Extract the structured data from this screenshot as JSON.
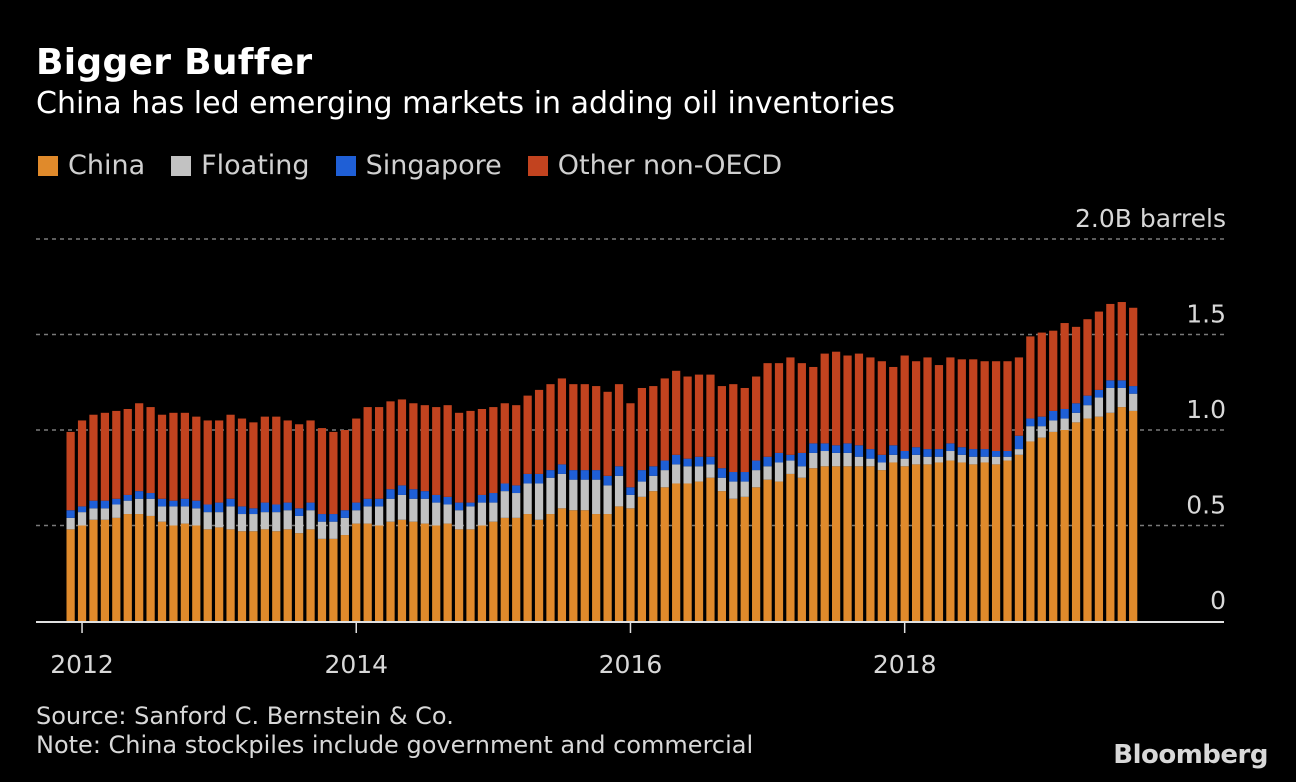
{
  "header": {
    "title": "Bigger Buffer",
    "subtitle": "China has led emerging markets in adding oil inventories"
  },
  "footer": {
    "source": "Source: Sanford C. Bernstein & Co.",
    "note": "Note: China stockpiles include government and commercial",
    "brand": "Bloomberg"
  },
  "chart_data": {
    "type": "bar",
    "stacked": true,
    "title": "Bigger Buffer",
    "subtitle": "China has led emerging markets in adding oil inventories",
    "xlabel": "",
    "ylabel": "B barrels",
    "y_unit_label": "2.0B barrels",
    "ylim": [
      0,
      2.0
    ],
    "yticks": [
      {
        "value": 0,
        "label": "0"
      },
      {
        "value": 0.5,
        "label": "0.5"
      },
      {
        "value": 1.0,
        "label": "1.0"
      },
      {
        "value": 1.5,
        "label": "1.5"
      },
      {
        "value": 2.0,
        "label": "2.0B barrels"
      }
    ],
    "xticks": [
      {
        "index": 1,
        "label": "2012"
      },
      {
        "index": 25,
        "label": "2014"
      },
      {
        "index": 49,
        "label": "2016"
      },
      {
        "index": 73,
        "label": "2018"
      }
    ],
    "grid": true,
    "legend_position": "top-left",
    "start_month": "2011-12",
    "end_month": "2019-09",
    "series": [
      {
        "name": "China",
        "color": "#e08a2b",
        "values": [
          0.48,
          0.5,
          0.53,
          0.53,
          0.54,
          0.56,
          0.56,
          0.55,
          0.52,
          0.5,
          0.51,
          0.5,
          0.48,
          0.49,
          0.48,
          0.47,
          0.47,
          0.48,
          0.47,
          0.48,
          0.46,
          0.48,
          0.43,
          0.43,
          0.45,
          0.51,
          0.51,
          0.5,
          0.52,
          0.53,
          0.52,
          0.51,
          0.5,
          0.51,
          0.48,
          0.48,
          0.5,
          0.52,
          0.54,
          0.54,
          0.56,
          0.53,
          0.56,
          0.59,
          0.58,
          0.58,
          0.56,
          0.56,
          0.6,
          0.59,
          0.65,
          0.68,
          0.7,
          0.72,
          0.72,
          0.73,
          0.75,
          0.68,
          0.64,
          0.65,
          0.7,
          0.74,
          0.73,
          0.77,
          0.75,
          0.8,
          0.81,
          0.81,
          0.81,
          0.81,
          0.81,
          0.79,
          0.83,
          0.81,
          0.82,
          0.82,
          0.83,
          0.84,
          0.83,
          0.82,
          0.83,
          0.82,
          0.84,
          0.87,
          0.94,
          0.96,
          0.99,
          1.0,
          1.04,
          1.06,
          1.07,
          1.09,
          1.12,
          1.1
        ]
      },
      {
        "name": "Floating",
        "color": "#c2c2c2",
        "values": [
          0.06,
          0.07,
          0.06,
          0.06,
          0.07,
          0.07,
          0.08,
          0.09,
          0.08,
          0.1,
          0.09,
          0.09,
          0.09,
          0.08,
          0.12,
          0.09,
          0.09,
          0.09,
          0.1,
          0.1,
          0.09,
          0.1,
          0.09,
          0.09,
          0.09,
          0.07,
          0.09,
          0.1,
          0.12,
          0.13,
          0.12,
          0.13,
          0.12,
          0.1,
          0.1,
          0.12,
          0.12,
          0.1,
          0.14,
          0.13,
          0.16,
          0.19,
          0.19,
          0.18,
          0.16,
          0.16,
          0.18,
          0.15,
          0.16,
          0.07,
          0.08,
          0.08,
          0.09,
          0.1,
          0.09,
          0.08,
          0.07,
          0.07,
          0.09,
          0.08,
          0.09,
          0.07,
          0.1,
          0.07,
          0.06,
          0.08,
          0.08,
          0.07,
          0.07,
          0.05,
          0.04,
          0.04,
          0.04,
          0.04,
          0.05,
          0.04,
          0.03,
          0.05,
          0.04,
          0.04,
          0.03,
          0.04,
          0.02,
          0.03,
          0.08,
          0.06,
          0.06,
          0.06,
          0.05,
          0.07,
          0.1,
          0.13,
          0.1,
          0.09
        ]
      },
      {
        "name": "Singapore",
        "color": "#1f5fd6",
        "values": [
          0.04,
          0.03,
          0.04,
          0.04,
          0.03,
          0.03,
          0.04,
          0.03,
          0.04,
          0.03,
          0.04,
          0.04,
          0.04,
          0.05,
          0.04,
          0.04,
          0.03,
          0.05,
          0.04,
          0.04,
          0.04,
          0.04,
          0.04,
          0.04,
          0.04,
          0.04,
          0.04,
          0.04,
          0.05,
          0.05,
          0.05,
          0.04,
          0.04,
          0.04,
          0.04,
          0.02,
          0.04,
          0.05,
          0.04,
          0.04,
          0.05,
          0.05,
          0.04,
          0.05,
          0.05,
          0.05,
          0.05,
          0.05,
          0.05,
          0.04,
          0.06,
          0.05,
          0.05,
          0.05,
          0.04,
          0.05,
          0.04,
          0.05,
          0.05,
          0.05,
          0.05,
          0.05,
          0.05,
          0.03,
          0.07,
          0.05,
          0.04,
          0.04,
          0.05,
          0.06,
          0.05,
          0.04,
          0.05,
          0.04,
          0.04,
          0.04,
          0.04,
          0.04,
          0.04,
          0.04,
          0.04,
          0.03,
          0.03,
          0.07,
          0.04,
          0.05,
          0.05,
          0.05,
          0.05,
          0.05,
          0.04,
          0.04,
          0.04,
          0.04
        ]
      },
      {
        "name": "Other non-OECD",
        "color": "#c2431f",
        "values": [
          0.41,
          0.45,
          0.45,
          0.46,
          0.46,
          0.45,
          0.46,
          0.45,
          0.44,
          0.46,
          0.45,
          0.44,
          0.44,
          0.43,
          0.44,
          0.46,
          0.45,
          0.45,
          0.46,
          0.43,
          0.44,
          0.43,
          0.45,
          0.43,
          0.42,
          0.44,
          0.48,
          0.48,
          0.46,
          0.45,
          0.45,
          0.45,
          0.46,
          0.48,
          0.47,
          0.48,
          0.45,
          0.45,
          0.42,
          0.42,
          0.41,
          0.44,
          0.45,
          0.45,
          0.45,
          0.45,
          0.44,
          0.44,
          0.43,
          0.44,
          0.43,
          0.42,
          0.43,
          0.44,
          0.43,
          0.43,
          0.43,
          0.43,
          0.46,
          0.44,
          0.44,
          0.49,
          0.47,
          0.51,
          0.47,
          0.4,
          0.47,
          0.49,
          0.46,
          0.48,
          0.48,
          0.49,
          0.41,
          0.5,
          0.45,
          0.48,
          0.44,
          0.45,
          0.46,
          0.47,
          0.46,
          0.47,
          0.47,
          0.41,
          0.43,
          0.44,
          0.42,
          0.45,
          0.4,
          0.4,
          0.41,
          0.4,
          0.41,
          0.41
        ]
      }
    ]
  }
}
